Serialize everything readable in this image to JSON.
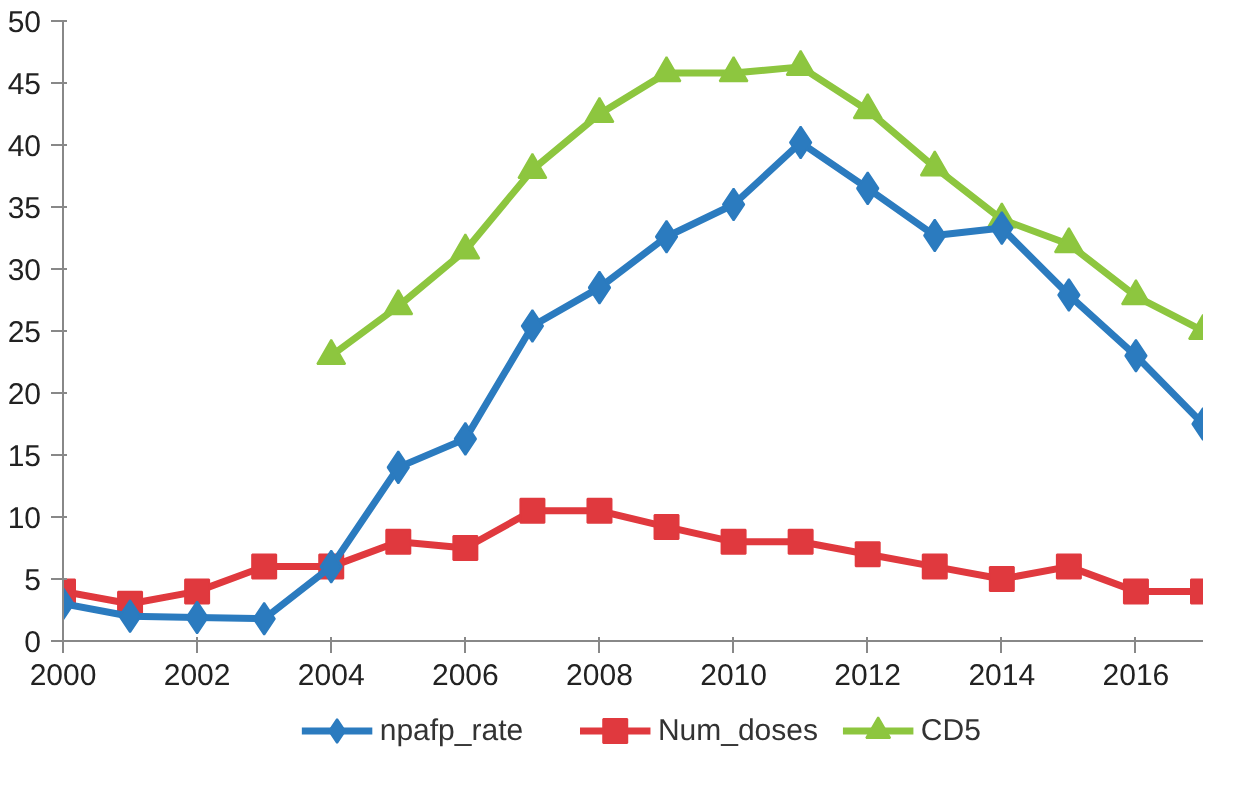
{
  "chart_data": {
    "type": "line",
    "x": [
      2000,
      2001,
      2002,
      2003,
      2004,
      2005,
      2006,
      2007,
      2008,
      2009,
      2010,
      2011,
      2012,
      2013,
      2014,
      2015,
      2016,
      2017
    ],
    "series": [
      {
        "name": "npafp_rate",
        "color": "#2b7bbf",
        "marker": "diamond",
        "values": [
          3,
          2,
          1.9,
          1.8,
          6,
          14,
          16.3,
          25.4,
          28.5,
          32.6,
          35.2,
          40.2,
          36.5,
          32.7,
          33.3,
          27.9,
          23,
          17.5
        ]
      },
      {
        "name": "Num_doses",
        "color": "#e0393e",
        "marker": "square",
        "values": [
          4,
          3,
          4,
          6,
          6,
          8,
          7.5,
          10.5,
          10.5,
          9.2,
          8,
          8,
          7,
          6,
          5,
          6,
          4,
          4
        ]
      },
      {
        "name": "CD5",
        "color": "#8dc63f",
        "marker": "triangle",
        "values": [
          null,
          null,
          null,
          null,
          23,
          27,
          31.5,
          38,
          42.5,
          45.8,
          45.8,
          46.3,
          42.8,
          38.2,
          34,
          32,
          27.8,
          25
        ]
      }
    ],
    "xlim": [
      2000,
      2017
    ],
    "xticks": [
      2000,
      2002,
      2004,
      2006,
      2008,
      2010,
      2012,
      2014,
      2016
    ],
    "ylim": [
      0,
      50
    ],
    "yticks": [
      0,
      5,
      10,
      15,
      20,
      25,
      30,
      35,
      40,
      45,
      50
    ],
    "grid": false,
    "legend": "bottom",
    "line_style": "solid"
  }
}
